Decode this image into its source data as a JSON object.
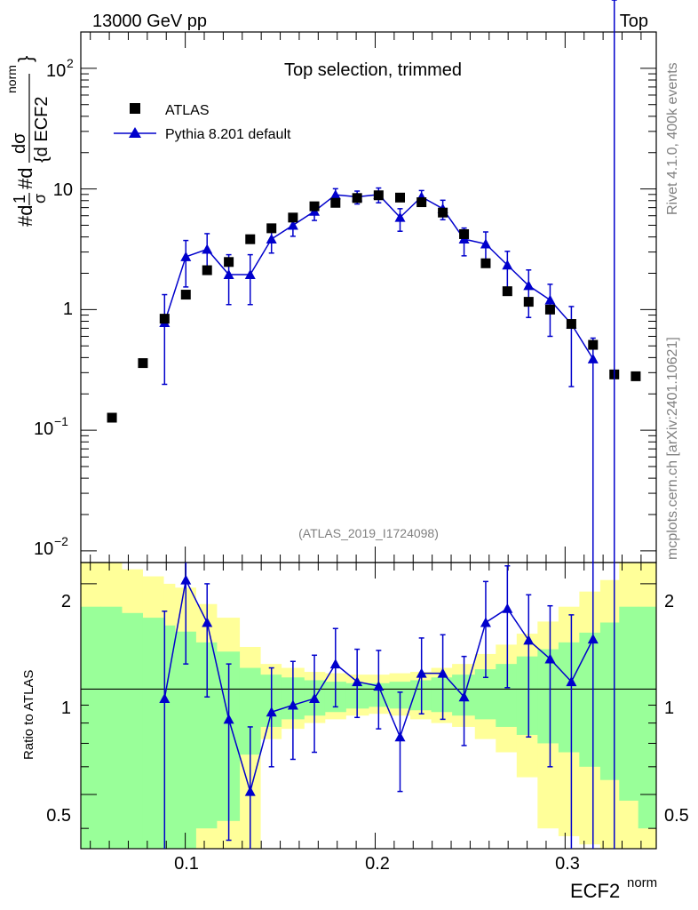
{
  "header": {
    "left": "13000 GeV pp",
    "right": "Top"
  },
  "side": {
    "rivet": "Rivet 4.1.0,  400k events",
    "mcplots": "mcplots.cern.ch [arXiv:2401.10621]"
  },
  "chart_data": {
    "type": "scatter",
    "title": "Top selection, trimmed",
    "analysis_label": "(ATLAS_2019_I1724098)",
    "xlabel": "ECF2",
    "xlabel_sup": "norm",
    "ylabel_parts": [
      "#d",
      "1",
      "σ",
      "#d",
      "dσ",
      "{d ECF2",
      "norm",
      "}"
    ],
    "ratio_ylabel": "Ratio to ATLAS",
    "xlim": [
      0.045,
      0.348
    ],
    "ylim": [
      0.008,
      200
    ],
    "ratio_ylim": [
      0.35,
      2.3
    ],
    "x_ticks": [
      "0.1",
      "0.2",
      "0.3"
    ],
    "y_ticks": [
      "10",
      "1"
    ],
    "y_ticks_exp": [
      {
        "base": "10",
        "exp": "2"
      },
      {
        "base": "10",
        "exp": "−1"
      },
      {
        "base": "10",
        "exp": "−2"
      }
    ],
    "ratio_ticks": [
      "2",
      "1",
      "0.5"
    ],
    "legend": [
      {
        "name": "ATLAS",
        "marker": "square",
        "color": "#000000"
      },
      {
        "name": "Pythia 8.201 default",
        "marker": "triangle",
        "color": "#0000cc"
      }
    ],
    "x": [
      0.0614,
      0.0777,
      0.0891,
      0.1003,
      0.1115,
      0.1229,
      0.1342,
      0.1454,
      0.1567,
      0.168,
      0.1791,
      0.1905,
      0.2018,
      0.2131,
      0.2244,
      0.2356,
      0.2468,
      0.2582,
      0.2696,
      0.2808,
      0.2921,
      0.3033,
      0.3147,
      0.3259,
      0.3372
    ],
    "series": [
      {
        "name": "ATLAS",
        "values": [
          0.127,
          0.36,
          0.84,
          1.33,
          2.12,
          2.48,
          3.83,
          4.72,
          5.79,
          7.18,
          7.67,
          8.41,
          8.86,
          8.48,
          7.76,
          6.37,
          4.22,
          2.42,
          1.42,
          1.16,
          1.0,
          0.76,
          0.51,
          0.29,
          0.28
        ]
      },
      {
        "name": "Pythia 8.201 default",
        "x_start_index": 2,
        "x_end_index": 23,
        "values": [
          0.78,
          2.74,
          3.16,
          1.95,
          1.95,
          3.84,
          5.0,
          6.53,
          8.94,
          8.6,
          8.98,
          5.81,
          8.6,
          6.86,
          3.84,
          3.5,
          2.34,
          1.58,
          1.2,
          0.76,
          0.39
        ],
        "err_low": [
          0.54,
          1.2,
          1.0,
          0.85,
          0.85,
          0.9,
          0.95,
          1.05,
          1.4,
          1.1,
          1.3,
          1.35,
          1.4,
          1.3,
          1.05,
          0.95,
          0.92,
          0.72,
          0.6,
          0.53,
          0.39
        ],
        "err_high": [
          0.55,
          1.0,
          1.1,
          0.9,
          0.9,
          0.75,
          0.8,
          0.9,
          1.1,
          1.0,
          1.2,
          1.05,
          1.1,
          1.2,
          0.9,
          0.9,
          0.7,
          0.55,
          0.42,
          0.3,
          0.19
        ]
      },
      {
        "name": "Ratio Pythia/ATLAS",
        "x_start_index": 2,
        "x_end_index": 23,
        "values": [
          0.94,
          2.05,
          1.55,
          0.82,
          0.51,
          0.86,
          0.9,
          0.94,
          1.18,
          1.05,
          1.02,
          0.73,
          1.11,
          1.11,
          0.95,
          1.55,
          1.7,
          1.38,
          1.22,
          1.05,
          1.39
        ],
        "err_low": [
          0.59,
          0.87,
          0.6,
          0.45,
          0.17,
          0.26,
          0.27,
          0.28,
          0.29,
          0.22,
          0.25,
          0.22,
          0.26,
          0.29,
          0.26,
          0.47,
          0.69,
          0.65,
          0.62,
          0.73,
          1.39
        ],
        "err_high": [
          0.73,
          0.65,
          0.45,
          0.36,
          0.27,
          0.29,
          0.3,
          0.31,
          0.31,
          0.25,
          0.27,
          0.25,
          0.29,
          0.32,
          0.29,
          0.48,
          0.55,
          0.48,
          0.51,
          0.58,
          1.25
        ]
      }
    ],
    "bands": {
      "edges": [
        0.045,
        0.0555,
        0.0665,
        0.0775,
        0.0885,
        0.0945,
        0.1055,
        0.1165,
        0.1285,
        0.1395,
        0.1505,
        0.1625,
        0.1735,
        0.1845,
        0.1965,
        0.2075,
        0.2185,
        0.2295,
        0.2405,
        0.2525,
        0.2635,
        0.2745,
        0.2855,
        0.2965,
        0.3075,
        0.3185,
        0.3285,
        0.3385,
        0.348
      ],
      "green_low": [
        0.35,
        0.35,
        0.35,
        0.35,
        0.35,
        0.35,
        0.4,
        0.42,
        0.65,
        0.78,
        0.82,
        0.84,
        0.86,
        0.88,
        0.89,
        0.88,
        0.87,
        0.86,
        0.84,
        0.82,
        0.78,
        0.74,
        0.7,
        0.66,
        0.6,
        0.55,
        0.48,
        0.4
      ],
      "green_high": [
        1.72,
        1.72,
        1.65,
        1.6,
        1.52,
        1.46,
        1.36,
        1.28,
        1.15,
        1.1,
        1.08,
        1.06,
        1.05,
        1.04,
        1.04,
        1.05,
        1.06,
        1.08,
        1.1,
        1.14,
        1.18,
        1.24,
        1.3,
        1.36,
        1.45,
        1.55,
        1.72,
        1.72
      ],
      "yellow_low": [
        0.35,
        0.35,
        0.35,
        0.35,
        0.35,
        0.35,
        0.35,
        0.35,
        0.35,
        0.72,
        0.77,
        0.8,
        0.82,
        0.84,
        0.85,
        0.84,
        0.82,
        0.8,
        0.78,
        0.72,
        0.66,
        0.56,
        0.4,
        0.38,
        0.36,
        0.35,
        0.35,
        0.35
      ],
      "yellow_high": [
        2.3,
        2.3,
        2.2,
        2.1,
        2.0,
        1.95,
        1.75,
        1.6,
        1.32,
        1.18,
        1.15,
        1.12,
        1.11,
        1.1,
        1.1,
        1.11,
        1.12,
        1.15,
        1.18,
        1.26,
        1.34,
        1.44,
        1.56,
        1.72,
        1.9,
        2.05,
        2.3,
        2.3
      ]
    }
  }
}
